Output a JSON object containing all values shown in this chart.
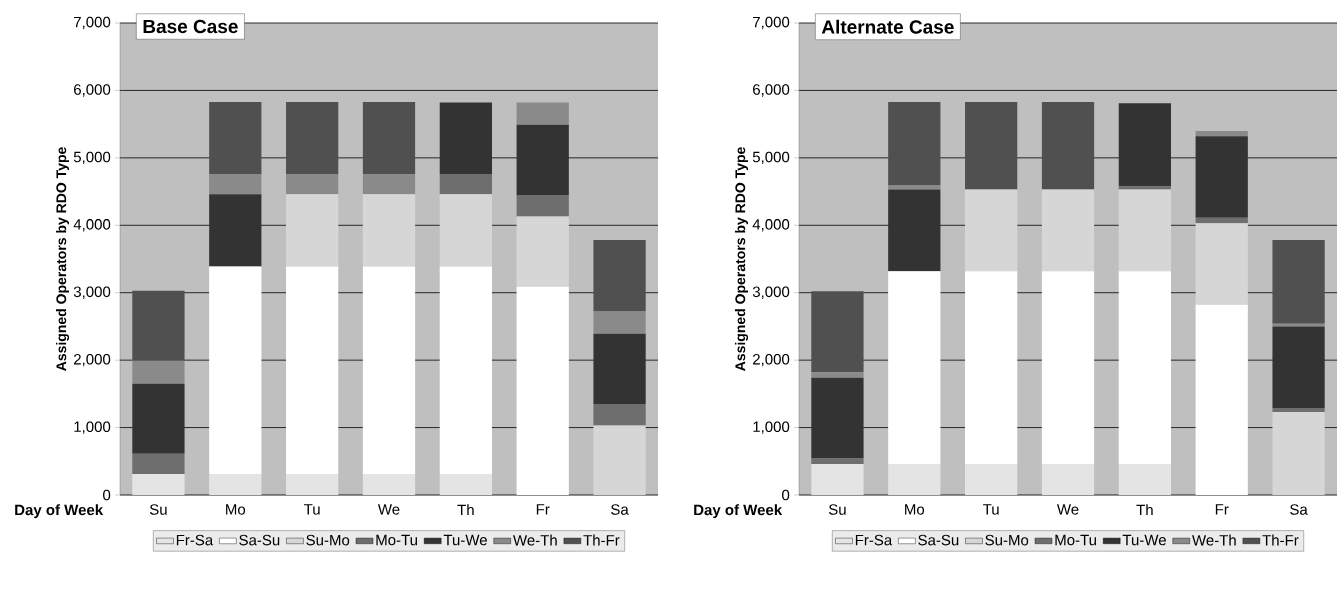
{
  "chart_data": [
    {
      "type": "bar",
      "title": "Base Case",
      "xlabel": "Day of Week",
      "ylabel": "Assigned Operators by RDO Type",
      "stacked": true,
      "grid": "y",
      "legend": "bottom",
      "categories": [
        "Su",
        "Mo",
        "Tu",
        "We",
        "Th",
        "Fr",
        "Sa"
      ],
      "ylim": [
        0,
        7000
      ],
      "yticks": [
        0,
        {
          "value": 1000,
          "label": "1,000"
        },
        {
          "value": 2000,
          "label": "2,000"
        },
        {
          "value": 3000,
          "label": "3,000"
        },
        {
          "value": 4000,
          "label": "4,000"
        },
        {
          "value": 5000,
          "label": "5,000"
        },
        {
          "value": 6000,
          "label": "6,000"
        },
        {
          "value": 7000,
          "label": "7,000"
        }
      ],
      "series": [
        {
          "name": "Fr-Sa",
          "color": "#e4e4e4",
          "values": [
            310,
            310,
            310,
            310,
            310,
            0,
            0
          ]
        },
        {
          "name": "Sa-Su",
          "color": "#ffffff",
          "values": [
            0,
            3080,
            3080,
            3080,
            3080,
            3090,
            0
          ]
        },
        {
          "name": "Su-Mo",
          "color": "#d6d6d6",
          "values": [
            0,
            0,
            1070,
            1070,
            1070,
            1040,
            1030
          ]
        },
        {
          "name": "Mo-Tu",
          "color": "#6e6e6e",
          "values": [
            300,
            0,
            0,
            0,
            300,
            320,
            320
          ]
        },
        {
          "name": "Tu-We",
          "color": "#333333",
          "values": [
            1040,
            1070,
            0,
            0,
            1060,
            1040,
            1040
          ]
        },
        {
          "name": "We-Th",
          "color": "#8a8a8a",
          "values": [
            340,
            300,
            300,
            300,
            0,
            330,
            330
          ]
        },
        {
          "name": "Th-Fr",
          "color": "#505050",
          "values": [
            1040,
            1070,
            1070,
            1070,
            0,
            0,
            1060
          ]
        }
      ]
    },
    {
      "type": "bar",
      "title": "Alternate Case",
      "xlabel": "Day of Week",
      "ylabel": "Assigned Operators by RDO Type",
      "stacked": true,
      "grid": "y",
      "legend": "bottom",
      "categories": [
        "Su",
        "Mo",
        "Tu",
        "We",
        "Th",
        "Fr",
        "Sa"
      ],
      "ylim": [
        0,
        7000
      ],
      "yticks": [
        0,
        {
          "value": 1000,
          "label": "1,000"
        },
        {
          "value": 2000,
          "label": "2,000"
        },
        {
          "value": 3000,
          "label": "3,000"
        },
        {
          "value": 4000,
          "label": "4,000"
        },
        {
          "value": 5000,
          "label": "5,000"
        },
        {
          "value": 6000,
          "label": "6,000"
        },
        {
          "value": 7000,
          "label": "7,000"
        }
      ],
      "series": [
        {
          "name": "Fr-Sa",
          "color": "#e4e4e4",
          "values": [
            460,
            460,
            460,
            460,
            460,
            0,
            0
          ]
        },
        {
          "name": "Sa-Su",
          "color": "#ffffff",
          "values": [
            0,
            2860,
            2860,
            2860,
            2860,
            2820,
            0
          ]
        },
        {
          "name": "Su-Mo",
          "color": "#d6d6d6",
          "values": [
            0,
            0,
            1210,
            1210,
            1210,
            1210,
            1230
          ]
        },
        {
          "name": "Mo-Tu",
          "color": "#6e6e6e",
          "values": [
            80,
            0,
            0,
            0,
            50,
            80,
            60
          ]
        },
        {
          "name": "Tu-We",
          "color": "#333333",
          "values": [
            1200,
            1210,
            0,
            0,
            1230,
            1210,
            1210
          ]
        },
        {
          "name": "We-Th",
          "color": "#8a8a8a",
          "values": [
            80,
            60,
            0,
            0,
            0,
            80,
            40
          ]
        },
        {
          "name": "Th-Fr",
          "color": "#505050",
          "values": [
            1200,
            1240,
            1300,
            1300,
            0,
            0,
            1240
          ]
        }
      ]
    }
  ]
}
